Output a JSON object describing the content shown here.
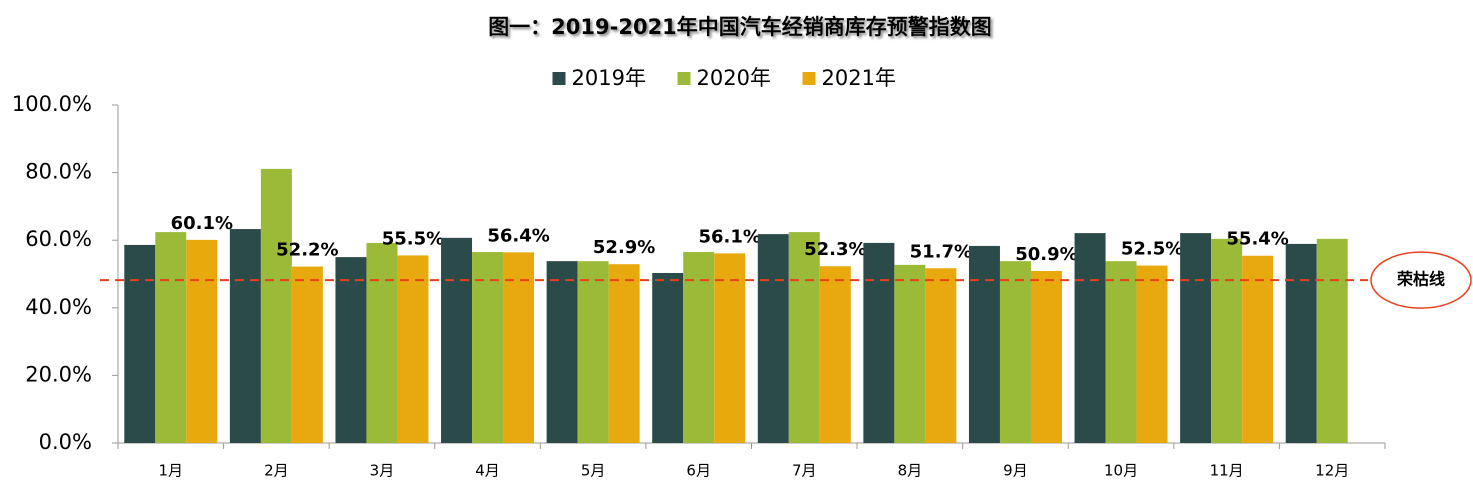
{
  "chart_data": {
    "type": "bar",
    "title": "图一：2019-2021年中国汽车经销商库存预警指数图",
    "categories": [
      "1月",
      "2月",
      "3月",
      "4月",
      "5月",
      "6月",
      "7月",
      "8月",
      "9月",
      "10月",
      "11月",
      "12月"
    ],
    "series": [
      {
        "name": "2019年",
        "color": "#2b4a4a",
        "values": [
          58.6,
          63.3,
          55.0,
          60.7,
          53.8,
          50.3,
          61.8,
          59.2,
          58.3,
          62.1,
          62.1,
          58.9
        ]
      },
      {
        "name": "2020年",
        "color": "#9bbb38",
        "values": [
          62.4,
          81.1,
          59.2,
          56.5,
          53.8,
          56.5,
          62.4,
          52.7,
          53.8,
          53.8,
          60.4,
          60.4
        ]
      },
      {
        "name": "2021年",
        "color": "#e8a90e",
        "values": [
          60.1,
          52.2,
          55.5,
          56.4,
          52.9,
          56.1,
          52.3,
          51.7,
          50.9,
          52.5,
          55.4,
          null
        ],
        "value_labels": [
          "60.1%",
          "52.2%",
          "55.5%",
          "56.4%",
          "52.9%",
          "56.1%",
          "52.3%",
          "51.7%",
          "50.9%",
          "52.5%",
          "55.4%",
          null
        ]
      }
    ],
    "ylim": [
      0,
      100
    ],
    "yticks": [
      {
        "value": 0,
        "label": "0.0%"
      },
      {
        "value": 20,
        "label": "20.0%"
      },
      {
        "value": 40,
        "label": "40.0%"
      },
      {
        "value": 60,
        "label": "60.0%"
      },
      {
        "value": 80,
        "label": "80.0%"
      },
      {
        "value": 100,
        "label": "100.0%"
      }
    ],
    "grid": false,
    "legend": "top",
    "reference_line": {
      "label": "荣枯线",
      "value": 48.2,
      "color": "#e8401c"
    }
  }
}
